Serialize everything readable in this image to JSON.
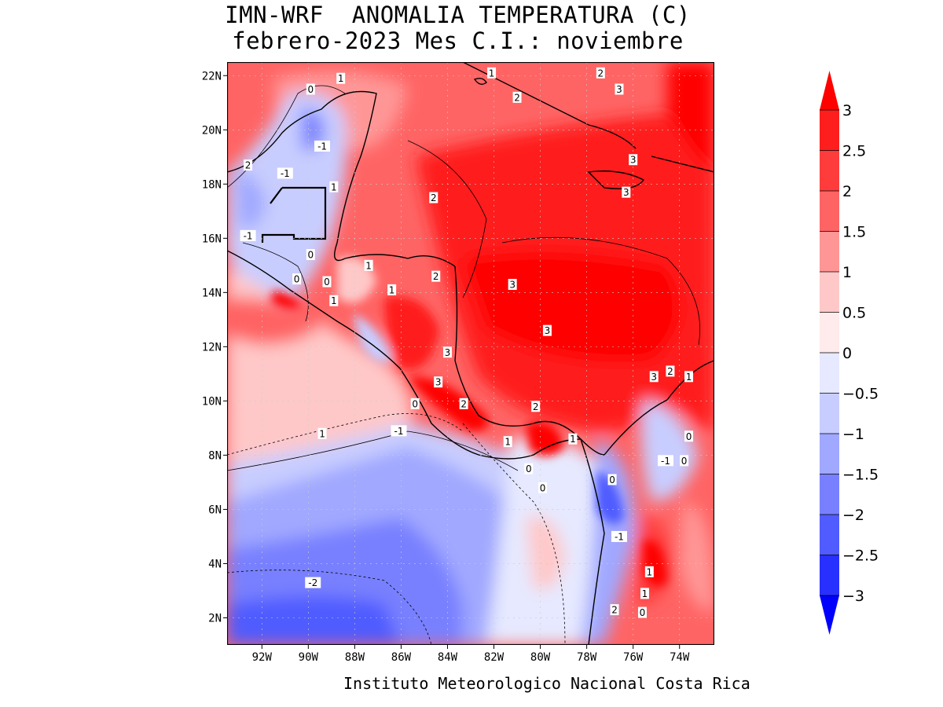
{
  "title": {
    "line1": "IMN-WRF  ANOMALIA TEMPERATURA (C)",
    "line2": "febrero-2023 Mes C.I.: noviembre"
  },
  "footer": "Instituto Meteorologico Nacional Costa Rica",
  "map": {
    "lon_range": [
      -93.5,
      -72.5
    ],
    "lat_range": [
      1,
      22.5
    ],
    "lat_ticks": [
      {
        "value": 22,
        "label": "22N"
      },
      {
        "value": 20,
        "label": "20N"
      },
      {
        "value": 18,
        "label": "18N"
      },
      {
        "value": 16,
        "label": "16N"
      },
      {
        "value": 14,
        "label": "14N"
      },
      {
        "value": 12,
        "label": "12N"
      },
      {
        "value": 10,
        "label": "10N"
      },
      {
        "value": 8,
        "label": "8N"
      },
      {
        "value": 6,
        "label": "6N"
      },
      {
        "value": 4,
        "label": "4N"
      },
      {
        "value": 2,
        "label": "2N"
      }
    ],
    "lon_ticks": [
      {
        "value": -92,
        "label": "92W"
      },
      {
        "value": -90,
        "label": "90W"
      },
      {
        "value": -88,
        "label": "88W"
      },
      {
        "value": -86,
        "label": "86W"
      },
      {
        "value": -84,
        "label": "84W"
      },
      {
        "value": -82,
        "label": "82W"
      },
      {
        "value": -80,
        "label": "80W"
      },
      {
        "value": -78,
        "label": "78W"
      },
      {
        "value": -76,
        "label": "76W"
      },
      {
        "value": -74,
        "label": "74W"
      }
    ],
    "contour_labels": [
      {
        "text": "1",
        "lon": -88.6,
        "lat": 21.9
      },
      {
        "text": "0",
        "lon": -89.9,
        "lat": 21.5
      },
      {
        "text": "1",
        "lon": -82.1,
        "lat": 22.1
      },
      {
        "text": "2",
        "lon": -77.4,
        "lat": 22.1
      },
      {
        "text": "3",
        "lon": -76.6,
        "lat": 21.5
      },
      {
        "text": "2",
        "lon": -81.0,
        "lat": 21.2
      },
      {
        "text": "-1",
        "lon": -89.4,
        "lat": 19.4
      },
      {
        "text": "2",
        "lon": -92.6,
        "lat": 18.7
      },
      {
        "text": "-1",
        "lon": -91.0,
        "lat": 18.4
      },
      {
        "text": "1",
        "lon": -88.9,
        "lat": 17.9
      },
      {
        "text": "3",
        "lon": -76.0,
        "lat": 18.9
      },
      {
        "text": "3",
        "lon": -76.3,
        "lat": 17.7
      },
      {
        "text": "2",
        "lon": -84.6,
        "lat": 17.5
      },
      {
        "text": "-1",
        "lon": -92.6,
        "lat": 16.1
      },
      {
        "text": "0",
        "lon": -89.9,
        "lat": 15.4
      },
      {
        "text": "1",
        "lon": -87.4,
        "lat": 15.0
      },
      {
        "text": "0",
        "lon": -90.5,
        "lat": 14.5
      },
      {
        "text": "0",
        "lon": -89.2,
        "lat": 14.4
      },
      {
        "text": "2",
        "lon": -84.5,
        "lat": 14.6
      },
      {
        "text": "1",
        "lon": -86.4,
        "lat": 14.1
      },
      {
        "text": "3",
        "lon": -81.2,
        "lat": 14.3
      },
      {
        "text": "1",
        "lon": -88.9,
        "lat": 13.7
      },
      {
        "text": "3",
        "lon": -79.7,
        "lat": 12.6
      },
      {
        "text": "3",
        "lon": -84.0,
        "lat": 11.8
      },
      {
        "text": "2",
        "lon": -74.4,
        "lat": 11.1
      },
      {
        "text": "3",
        "lon": -75.1,
        "lat": 10.9
      },
      {
        "text": "1",
        "lon": -73.6,
        "lat": 10.9
      },
      {
        "text": "3",
        "lon": -84.4,
        "lat": 10.7
      },
      {
        "text": "0",
        "lon": -85.4,
        "lat": 9.9
      },
      {
        "text": "2",
        "lon": -83.3,
        "lat": 9.9
      },
      {
        "text": "2",
        "lon": -80.2,
        "lat": 9.8
      },
      {
        "text": "1",
        "lon": -89.4,
        "lat": 8.8
      },
      {
        "text": "-1",
        "lon": -86.1,
        "lat": 8.9
      },
      {
        "text": "1",
        "lon": -78.6,
        "lat": 8.6
      },
      {
        "text": "0",
        "lon": -73.6,
        "lat": 8.7
      },
      {
        "text": "1",
        "lon": -81.4,
        "lat": 8.5
      },
      {
        "text": "-1",
        "lon": -74.6,
        "lat": 7.8
      },
      {
        "text": "0",
        "lon": -73.8,
        "lat": 7.8
      },
      {
        "text": "0",
        "lon": -80.5,
        "lat": 7.5
      },
      {
        "text": "0",
        "lon": -76.9,
        "lat": 7.1
      },
      {
        "text": "0",
        "lon": -79.9,
        "lat": 6.8
      },
      {
        "text": "-1",
        "lon": -76.6,
        "lat": 5.0
      },
      {
        "text": "1",
        "lon": -75.3,
        "lat": 3.7
      },
      {
        "text": "-2",
        "lon": -89.8,
        "lat": 3.3
      },
      {
        "text": "1",
        "lon": -75.5,
        "lat": 2.9
      },
      {
        "text": "2",
        "lon": -76.8,
        "lat": 2.3
      },
      {
        "text": "0",
        "lon": -75.6,
        "lat": 2.2
      }
    ]
  },
  "colorbar": {
    "levels": [
      {
        "label": "3",
        "value": 3
      },
      {
        "label": "2.5",
        "value": 2.5
      },
      {
        "label": "2",
        "value": 2
      },
      {
        "label": "1.5",
        "value": 1.5
      },
      {
        "label": "1",
        "value": 1
      },
      {
        "label": "0.5",
        "value": 0.5
      },
      {
        "label": "0",
        "value": 0
      },
      {
        "label": "−0.5",
        "value": -0.5
      },
      {
        "label": "−1",
        "value": -1
      },
      {
        "label": "−1.5",
        "value": -1.5
      },
      {
        "label": "−2",
        "value": -2
      },
      {
        "label": "−2.5",
        "value": -2.5
      },
      {
        "label": "−3",
        "value": -3
      }
    ],
    "colors": [
      "#fe0000",
      "#ff1e1e",
      "#ff3c3c",
      "#ff6464",
      "#ff9696",
      "#ffc8c8",
      "#ffebeb",
      "#e6e9ff",
      "#c8cdff",
      "#a0a8ff",
      "#7880ff",
      "#505cff",
      "#2830ff",
      "#0000fe"
    ]
  }
}
